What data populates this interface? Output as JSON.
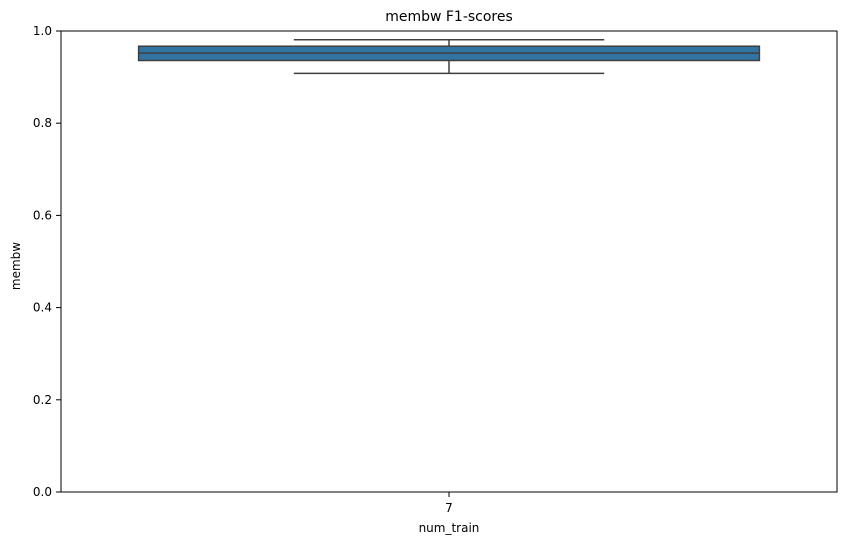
{
  "chart_data": {
    "type": "box",
    "title": "membw F1-scores",
    "xlabel": "num_train",
    "ylabel": "membw",
    "ylim": [
      0.0,
      1.0
    ],
    "yticks": [
      0.0,
      0.2,
      0.4,
      0.6,
      0.8,
      1.0
    ],
    "ytick_labels": [
      "0.0",
      "0.2",
      "0.4",
      "0.6",
      "0.8",
      "1.0"
    ],
    "categories": [
      "7"
    ],
    "boxes": [
      {
        "category": "7",
        "whisker_low": 0.908,
        "q1": 0.936,
        "median": 0.952,
        "q3": 0.967,
        "whisker_high": 0.981
      }
    ],
    "grid": false,
    "legend": "none",
    "box_color": "#3274a1",
    "line_color": "#3f3f3f"
  }
}
